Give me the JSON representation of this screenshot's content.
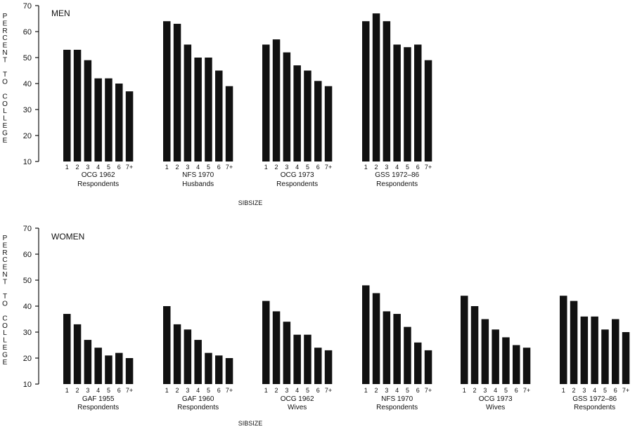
{
  "chart_data": [
    {
      "type": "bar",
      "title": "MEN",
      "ylabel": "PERCENT TO COLLEGE",
      "xlabel": "SIBSIZE",
      "ylim": [
        10,
        70
      ],
      "yticks": [
        10,
        20,
        30,
        40,
        50,
        60,
        70
      ],
      "categories": [
        "1",
        "2",
        "3",
        "4",
        "5",
        "6",
        "7+"
      ],
      "series": [
        {
          "name": "OCG 1962 Respondents",
          "line1": "OCG 1962",
          "line2": "Respondents",
          "values": [
            53,
            53,
            49,
            42,
            42,
            40,
            37
          ]
        },
        {
          "name": "NFS 1970 Husbands",
          "line1": "NFS 1970",
          "line2": "Husbands",
          "values": [
            64,
            63,
            55,
            50,
            50,
            45,
            39
          ]
        },
        {
          "name": "OCG 1973 Respondents",
          "line1": "OCG 1973",
          "line2": "Respondents",
          "values": [
            55,
            57,
            52,
            47,
            45,
            41,
            39
          ]
        },
        {
          "name": "GSS 1972-86 Respondents",
          "line1": "GSS 1972–86",
          "line2": "Respondents",
          "values": [
            64,
            67,
            64,
            55,
            54,
            55,
            49
          ]
        }
      ]
    },
    {
      "type": "bar",
      "title": "WOMEN",
      "ylabel": "PERCENT TO COLLEGE",
      "xlabel": "SIBSIZE",
      "ylim": [
        10,
        70
      ],
      "yticks": [
        10,
        20,
        30,
        40,
        50,
        60,
        70
      ],
      "categories": [
        "1",
        "2",
        "3",
        "4",
        "5",
        "6",
        "7+"
      ],
      "series": [
        {
          "name": "GAF 1955 Respondents",
          "line1": "GAF 1955",
          "line2": "Respondents",
          "values": [
            37,
            33,
            27,
            24,
            21,
            22,
            20
          ]
        },
        {
          "name": "GAF 1960 Respondents",
          "line1": "GAF 1960",
          "line2": "Respondents",
          "values": [
            40,
            33,
            31,
            27,
            22,
            21,
            20
          ]
        },
        {
          "name": "OCG 1962 Wives",
          "line1": "OCG 1962",
          "line2": "Wives",
          "values": [
            42,
            38,
            34,
            29,
            29,
            24,
            23
          ]
        },
        {
          "name": "NFS 1970 Respondents",
          "line1": "NFS 1970",
          "line2": "Respondents",
          "values": [
            48,
            45,
            38,
            37,
            32,
            26,
            23
          ]
        },
        {
          "name": "OCG 1973 Wives",
          "line1": "OCG 1973",
          "line2": "Wives",
          "values": [
            44,
            40,
            35,
            31,
            28,
            25,
            24
          ]
        },
        {
          "name": "GSS 1972-86 Respondents",
          "line1": "GSS 1972–86",
          "line2": "Respondents",
          "values": [
            44,
            42,
            36,
            36,
            31,
            35,
            30
          ]
        }
      ]
    }
  ]
}
